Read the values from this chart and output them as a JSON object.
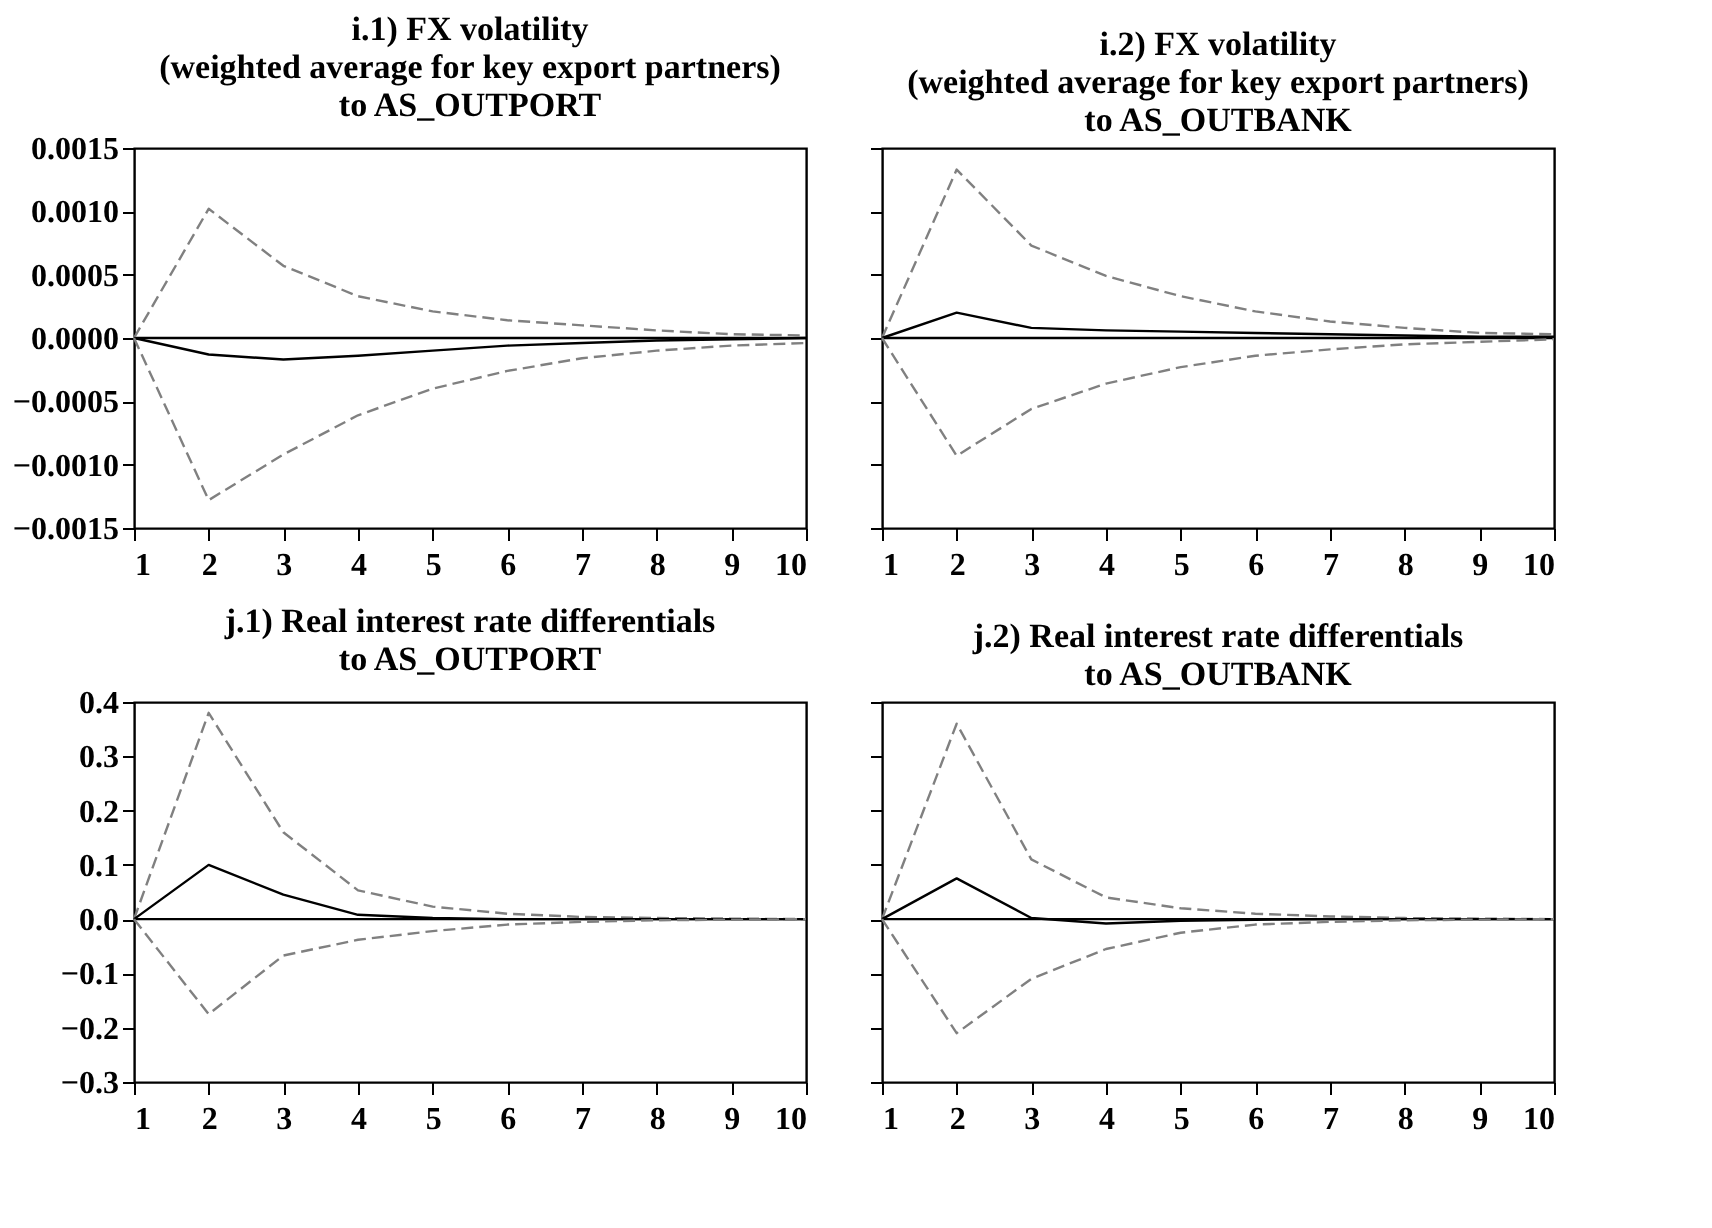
{
  "chart_data": [
    {
      "type": "line",
      "title": "i.1) FX  volatility\n(weighted average for key export partners)\nto AS_OUTPORT",
      "x": [
        1,
        2,
        3,
        4,
        5,
        6,
        7,
        8,
        9,
        10
      ],
      "xlim": [
        1,
        10
      ],
      "xticks": [
        1,
        2,
        3,
        4,
        5,
        6,
        7,
        8,
        9,
        10
      ],
      "ylim": [
        -0.0015,
        0.0015
      ],
      "yticks": [
        {
          "value": -0.0015,
          "label": "−0.0015"
        },
        {
          "value": -0.001,
          "label": "−0.0010"
        },
        {
          "value": -0.0005,
          "label": "−0.0005"
        },
        {
          "value": 0,
          "label": "0.0000"
        },
        {
          "value": 0.0005,
          "label": "0.0005"
        },
        {
          "value": 0.001,
          "label": "0.0010"
        },
        {
          "value": 0.0015,
          "label": "0.0015"
        }
      ],
      "grid": false,
      "legend": false,
      "ref_lines": [
        {
          "axis": "y",
          "value": 0,
          "color": "#000000"
        }
      ],
      "series": [
        {
          "color": "#808080",
          "line_style": "dashed",
          "values": [
            0,
            0.00102,
            0.00057,
            0.00033,
            0.00021,
            0.00014,
            0.0001,
            6e-05,
            3e-05,
            2e-05
          ]
        },
        {
          "color": "#000000",
          "line_style": "solid",
          "values": [
            0,
            -0.00013,
            -0.00017,
            -0.00014,
            -0.0001,
            -6e-05,
            -4e-05,
            -2e-05,
            -1e-05,
            0
          ]
        },
        {
          "color": "#808080",
          "line_style": "dashed",
          "values": [
            0,
            -0.00128,
            -0.00092,
            -0.00061,
            -0.0004,
            -0.00026,
            -0.00016,
            -0.0001,
            -6e-05,
            -4e-05
          ]
        }
      ]
    },
    {
      "type": "line",
      "title": "i.2) FX volatility\n(weighted average for key export partners)\nto AS_OUTBANK",
      "x": [
        1,
        2,
        3,
        4,
        5,
        6,
        7,
        8,
        9,
        10
      ],
      "xlim": [
        1,
        10
      ],
      "xticks": [
        1,
        2,
        3,
        4,
        5,
        6,
        7,
        8,
        9,
        10
      ],
      "ylim": [
        -0.0015,
        0.0015
      ],
      "yticks": [
        {
          "value": -0.0015,
          "label": null
        },
        {
          "value": -0.001,
          "label": null
        },
        {
          "value": -0.0005,
          "label": null
        },
        {
          "value": 0,
          "label": null
        },
        {
          "value": 0.0005,
          "label": null
        },
        {
          "value": 0.001,
          "label": null
        },
        {
          "value": 0.0015,
          "label": null
        }
      ],
      "tick_labels": "x",
      "grid": false,
      "legend": false,
      "ref_lines": [
        {
          "axis": "y",
          "value": 0,
          "color": "#000000"
        }
      ],
      "series": [
        {
          "color": "#808080",
          "line_style": "dashed",
          "values": [
            0,
            0.00133,
            0.00073,
            0.00049,
            0.00033,
            0.00021,
            0.00013,
            8e-05,
            4e-05,
            3e-05
          ]
        },
        {
          "color": "#000000",
          "line_style": "solid",
          "values": [
            0,
            0.0002,
            8e-05,
            6e-05,
            5e-05,
            4e-05,
            3e-05,
            2e-05,
            1e-05,
            1e-05
          ]
        },
        {
          "color": "#808080",
          "line_style": "dashed",
          "values": [
            0,
            -0.00093,
            -0.00056,
            -0.00036,
            -0.00023,
            -0.00014,
            -9e-05,
            -5e-05,
            -3e-05,
            -1e-05
          ]
        }
      ]
    },
    {
      "type": "line",
      "title": "j.1) Real interest rate differentials\nto AS_OUTPORT",
      "x": [
        1,
        2,
        3,
        4,
        5,
        6,
        7,
        8,
        9,
        10
      ],
      "xlim": [
        1,
        10
      ],
      "xticks": [
        1,
        2,
        3,
        4,
        5,
        6,
        7,
        8,
        9,
        10
      ],
      "ylim": [
        -0.3,
        0.4
      ],
      "yticks": [
        {
          "value": -0.3,
          "label": "−0.3"
        },
        {
          "value": -0.2,
          "label": "−0.2"
        },
        {
          "value": -0.1,
          "label": "−0.1"
        },
        {
          "value": 0,
          "label": "0.0"
        },
        {
          "value": 0.1,
          "label": "0.1"
        },
        {
          "value": 0.2,
          "label": "0.2"
        },
        {
          "value": 0.3,
          "label": "0.3"
        },
        {
          "value": 0.4,
          "label": "0.4"
        }
      ],
      "grid": false,
      "legend": false,
      "ref_lines": [
        {
          "axis": "y",
          "value": 0,
          "color": "#000000"
        }
      ],
      "series": [
        {
          "color": "#808080",
          "line_style": "dashed",
          "values": [
            0,
            0.38,
            0.16,
            0.053,
            0.023,
            0.01,
            0.004,
            0.002,
            0.001,
            0
          ]
        },
        {
          "color": "#000000",
          "line_style": "solid",
          "values": [
            0,
            0.1,
            0.045,
            0.008,
            0.002,
            0,
            0,
            0,
            0,
            0
          ]
        },
        {
          "color": "#808080",
          "line_style": "dashed",
          "values": [
            0,
            -0.175,
            -0.067,
            -0.038,
            -0.022,
            -0.01,
            -0.005,
            -0.002,
            -0.001,
            0
          ]
        }
      ]
    },
    {
      "type": "line",
      "title": "j.2) Real interest rate differentials\nto AS_OUTBANK",
      "x": [
        1,
        2,
        3,
        4,
        5,
        6,
        7,
        8,
        9,
        10
      ],
      "xlim": [
        1,
        10
      ],
      "xticks": [
        1,
        2,
        3,
        4,
        5,
        6,
        7,
        8,
        9,
        10
      ],
      "ylim": [
        -0.3,
        0.4
      ],
      "yticks": [
        {
          "value": -0.3,
          "label": null
        },
        {
          "value": -0.2,
          "label": null
        },
        {
          "value": -0.1,
          "label": null
        },
        {
          "value": 0,
          "label": null
        },
        {
          "value": 0.1,
          "label": null
        },
        {
          "value": 0.2,
          "label": null
        },
        {
          "value": 0.3,
          "label": null
        },
        {
          "value": 0.4,
          "label": null
        }
      ],
      "tick_labels": "x",
      "grid": false,
      "legend": false,
      "ref_lines": [
        {
          "axis": "y",
          "value": 0,
          "color": "#000000"
        }
      ],
      "series": [
        {
          "color": "#808080",
          "line_style": "dashed",
          "values": [
            0,
            0.36,
            0.11,
            0.04,
            0.02,
            0.01,
            0.005,
            0.002,
            0.001,
            0
          ]
        },
        {
          "color": "#000000",
          "line_style": "solid",
          "values": [
            0,
            0.075,
            0.002,
            -0.008,
            -0.003,
            -0.001,
            0,
            0,
            0,
            0
          ]
        },
        {
          "color": "#808080",
          "line_style": "dashed",
          "values": [
            0,
            -0.21,
            -0.11,
            -0.055,
            -0.025,
            -0.01,
            -0.005,
            -0.002,
            -0.001,
            0
          ]
        }
      ]
    }
  ]
}
